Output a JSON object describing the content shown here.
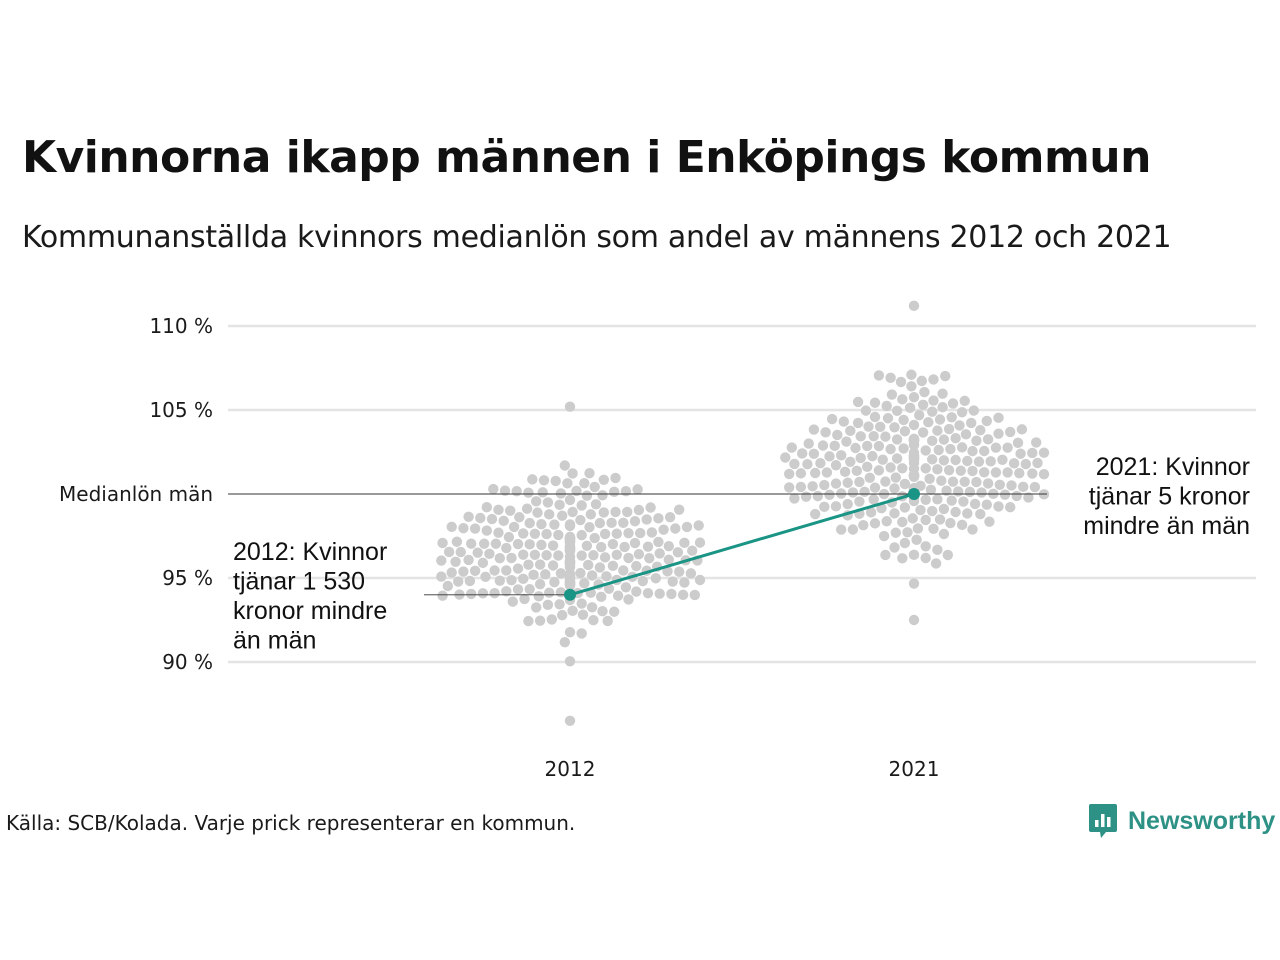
{
  "title": "Kvinnorna ikapp männen i Enköpings kommun",
  "subtitle": "Kommunanställda kvinnors medianlön som andel av männens 2012 och 2021",
  "source": "Källa: SCB/Kolada. Varje prick representerar en kommun.",
  "brand": {
    "name": "Newsworthy"
  },
  "colors": {
    "dots": "#cccccc",
    "highlight": "#1a9485",
    "grid": "#e4e4e4",
    "reference": "#333333"
  },
  "chart_data": {
    "type": "scatter",
    "subtype": "beeswarm",
    "categories": [
      "2012",
      "2021"
    ],
    "y_ticks": [
      {
        "value": 90,
        "label": "90 %"
      },
      {
        "value": 95,
        "label": "95 %"
      },
      {
        "value": 105,
        "label": "105 %"
      },
      {
        "value": 110,
        "label": "110 %"
      }
    ],
    "reference_line": {
      "value": 100,
      "label": "Medianlön män"
    },
    "ylim": [
      86,
      111.5
    ],
    "highlight": {
      "name": "Enköpings kommun",
      "points": [
        {
          "x": "2012",
          "y": 94.0
        },
        {
          "x": "2021",
          "y": 100.0
        }
      ]
    },
    "annotations": [
      {
        "category": "2012",
        "lines": [
          "2012: Kvinnor",
          "tjänar 1 530",
          "kronor mindre",
          "än män"
        ]
      },
      {
        "category": "2021",
        "lines": [
          "2021: Kvinnor",
          "tjänar 5 kronor",
          "mindre än män"
        ]
      }
    ],
    "distribution": [
      {
        "category": "2012",
        "n": 290,
        "median": 96.3,
        "spread": 2.2,
        "min": 86.5,
        "max": 105.2
      },
      {
        "category": "2021",
        "n": 290,
        "median": 101.5,
        "spread": 2.5,
        "min": 92.5,
        "max": 111.2
      }
    ]
  }
}
